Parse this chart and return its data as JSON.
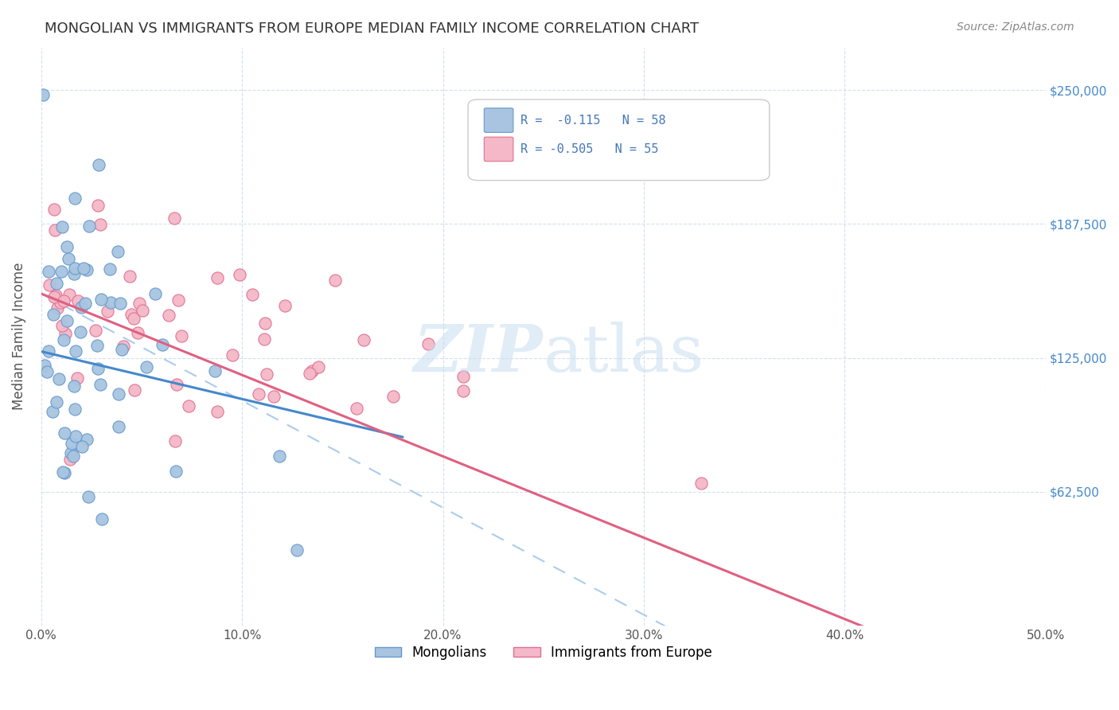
{
  "title": "MONGOLIAN VS IMMIGRANTS FROM EUROPE MEDIAN FAMILY INCOME CORRELATION CHART",
  "source": "Source: ZipAtlas.com",
  "ylabel": "Median Family Income",
  "x_min": 0.0,
  "x_max": 0.5,
  "y_min": 0,
  "y_max": 270000,
  "mongolian_color": "#a8c4e0",
  "mongolian_edge": "#6699cc",
  "europe_color": "#f4b8c8",
  "europe_edge": "#e07090",
  "mongolian_R": -0.115,
  "mongolian_N": 58,
  "europe_R": -0.505,
  "europe_N": 55,
  "trend_mongolian_color": "#4488cc",
  "trend_europe_color": "#e06080",
  "trend_dashed_color": "#aaccee",
  "background_color": "#ffffff",
  "legend_R_color": "#4477bb",
  "y_ticks": [
    62500,
    125000,
    187500,
    250000
  ],
  "y_labels": [
    "$62,500",
    "$125,000",
    "$187,500",
    "$250,000"
  ],
  "x_ticks": [
    0.0,
    0.1,
    0.2,
    0.3,
    0.4,
    0.5
  ],
  "x_tick_labels": [
    "0.0%",
    "10.0%",
    "20.0%",
    "30.0%",
    "40.0%",
    "50.0%"
  ]
}
